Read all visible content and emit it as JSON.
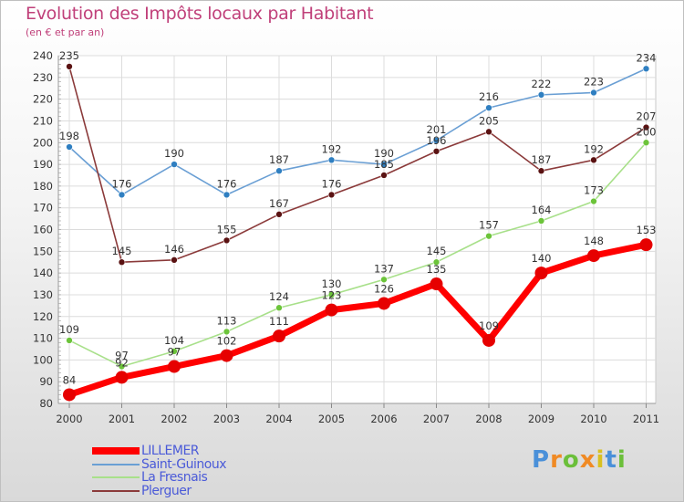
{
  "chart_data": {
    "type": "line",
    "title": "Evolution des Impôts locaux par Habitant",
    "subtitle": "(en € et par an)",
    "xlabel": "",
    "ylabel": "",
    "ylim": [
      80,
      240
    ],
    "y_ticks": [
      80,
      90,
      100,
      110,
      120,
      130,
      140,
      150,
      160,
      170,
      180,
      190,
      200,
      210,
      220,
      230,
      240
    ],
    "categories": [
      "2000",
      "2001",
      "2002",
      "2003",
      "2004",
      "2005",
      "2006",
      "2007",
      "2008",
      "2009",
      "2010",
      "2011"
    ],
    "grid": true,
    "legend_position": "bottom-left",
    "series": [
      {
        "name": "Saint-Guinoux",
        "color": "#6a9fd4",
        "marker": "#2f7fc1",
        "thick": false,
        "values": [
          198,
          176,
          190,
          176,
          187,
          192,
          190,
          201,
          216,
          222,
          223,
          234
        ]
      },
      {
        "name": "Plerguer",
        "color": "#8b3a3a",
        "marker": "#5a1212",
        "thick": false,
        "values": [
          235,
          145,
          146,
          155,
          167,
          176,
          185,
          196,
          205,
          187,
          192,
          207
        ]
      },
      {
        "name": "La Fresnais",
        "color": "#a8e08a",
        "marker": "#6cc43a",
        "thick": false,
        "values": [
          109,
          97,
          104,
          113,
          124,
          130,
          137,
          145,
          157,
          164,
          173,
          200
        ]
      },
      {
        "name": "LILLEMER",
        "color": "#ff0000",
        "marker": "#e60000",
        "thick": true,
        "values": [
          84,
          92,
          97,
          102,
          111,
          123,
          126,
          135,
          109,
          140,
          148,
          153
        ]
      }
    ],
    "legend_order": [
      "LILLEMER",
      "Saint-Guinoux",
      "La Fresnais",
      "Plerguer"
    ]
  },
  "logo": {
    "letters": [
      "P",
      "r",
      "o",
      "x",
      "i",
      "t",
      "i"
    ],
    "colors": [
      "#4a90d9",
      "#f08a24",
      "#6bbf3a",
      "#f08a24",
      "#d9c020",
      "#4a90d9",
      "#6bbf3a"
    ]
  }
}
